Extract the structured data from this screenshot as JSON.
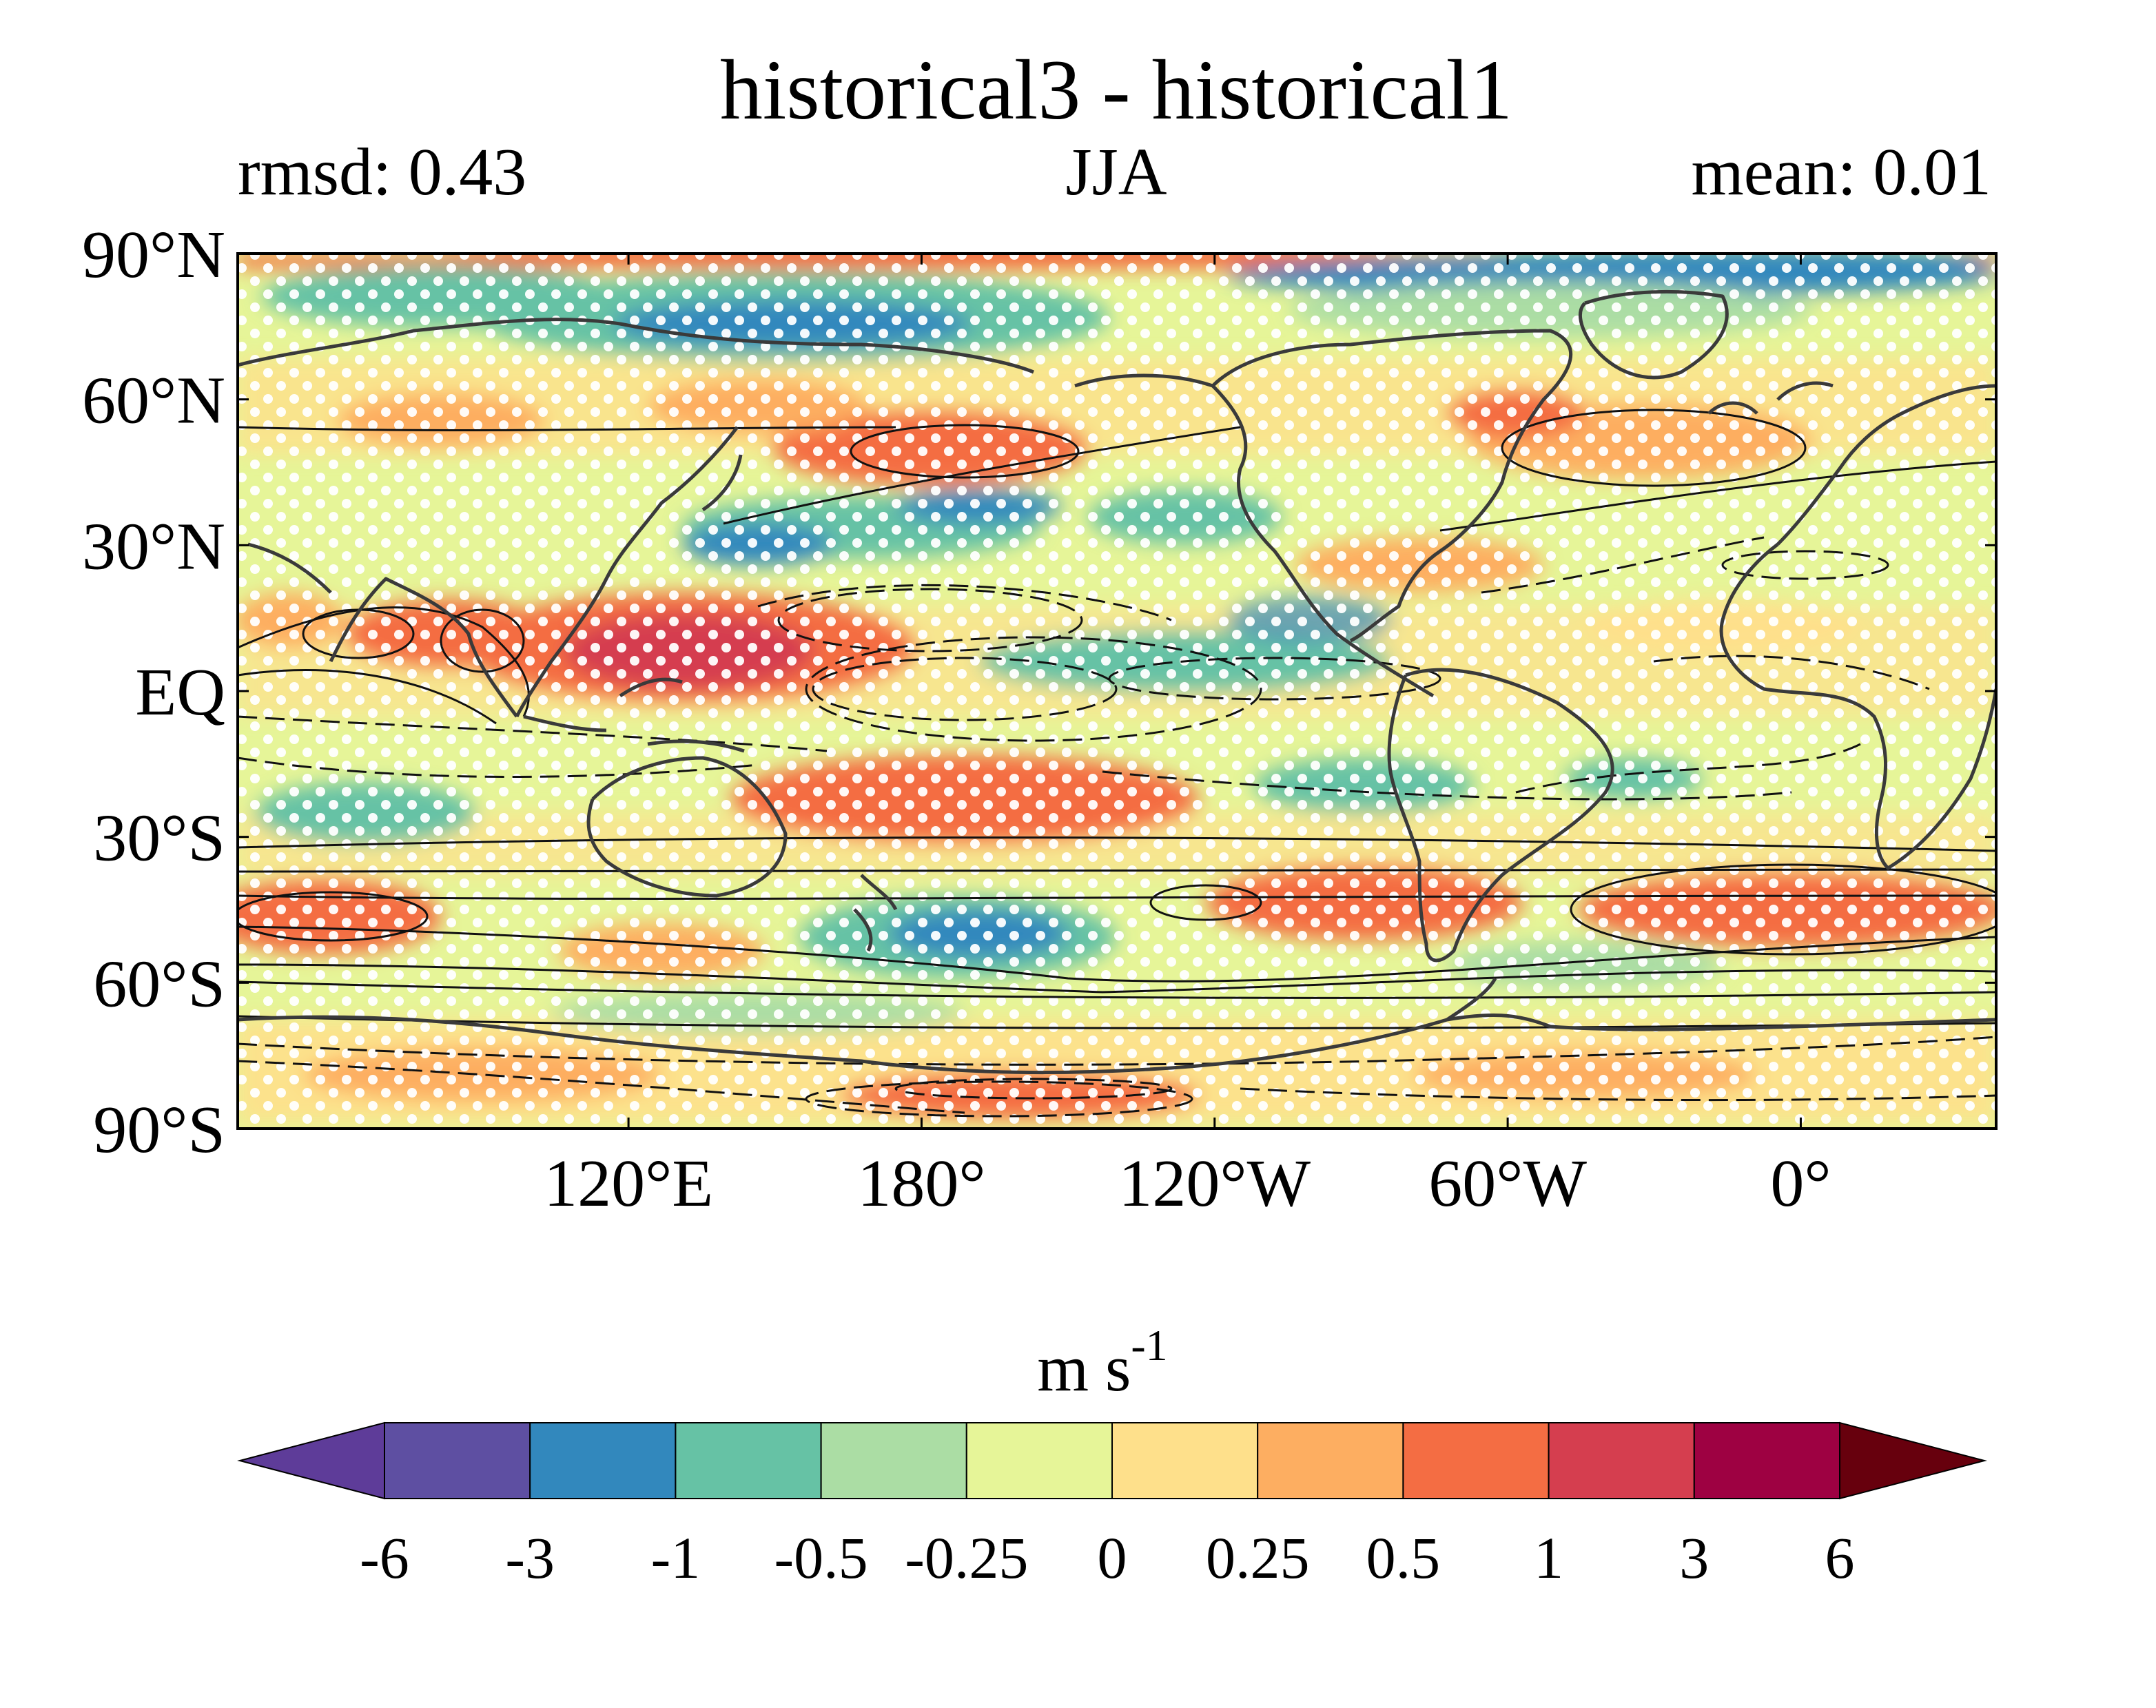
{
  "title": "historical3 - historical1",
  "left_subtitle": "rmsd: 0.43",
  "center_subtitle": "JJA",
  "right_subtitle": "mean: 0.01",
  "units": {
    "base": "m s",
    "exponent": "-1"
  },
  "map": {
    "projection": "equirectangular",
    "lon_range": [
      40,
      400
    ],
    "lat_range": [
      -90,
      90
    ],
    "lat_ticks": [
      {
        "value": 90,
        "label": "90°N"
      },
      {
        "value": 60,
        "label": "60°N"
      },
      {
        "value": 30,
        "label": "30°N"
      },
      {
        "value": 0,
        "label": "EQ"
      },
      {
        "value": -30,
        "label": "30°S"
      },
      {
        "value": -60,
        "label": "60°S"
      },
      {
        "value": -90,
        "label": "90°S"
      }
    ],
    "lon_ticks": [
      {
        "value": 120,
        "label": "120°E"
      },
      {
        "value": 180,
        "label": "180°"
      },
      {
        "value": 240,
        "label": "120°W"
      },
      {
        "value": 300,
        "label": "60°W"
      },
      {
        "value": 360,
        "label": "0°"
      }
    ],
    "stippling": "white dots mark significant differences",
    "contours": "black solid (positive) and dashed (negative) climatology contours"
  },
  "colorbar": {
    "levels": [
      "-6",
      "-3",
      "-1",
      "-0.5",
      "-0.25",
      "0",
      "0.25",
      "0.5",
      "1",
      "3",
      "6"
    ],
    "colors": [
      "#5e3c99",
      "#5e4fa2",
      "#3288bd",
      "#66c2a5",
      "#abdda4",
      "#e6f598",
      "#fee08b",
      "#fdae61",
      "#f46d43",
      "#d53e4f",
      "#9e0142",
      "#67000d"
    ],
    "extend": "both"
  },
  "field_colors": {
    "strong_negative": "#3288bd",
    "negative": "#66c2a5",
    "weak_negative": "#abdda4",
    "near_zero_neg": "#e6f598",
    "near_zero_pos": "#fee08b",
    "weak_positive": "#fdae61",
    "positive": "#f46d43",
    "strong_positive": "#d53e4f",
    "coastline": "#3a3a3a"
  }
}
